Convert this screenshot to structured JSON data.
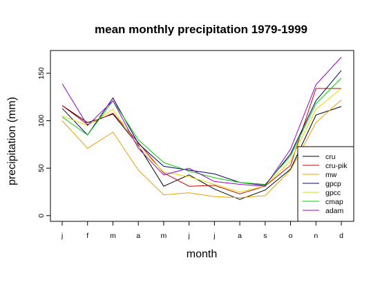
{
  "chart_data": {
    "type": "line",
    "title": "mean monthly precipitation 1979-1999",
    "xlabel": "month",
    "ylabel": "precipitation (mm)",
    "categories": [
      "j",
      "f",
      "m",
      "a",
      "m",
      "j",
      "j",
      "a",
      "s",
      "o",
      "n",
      "d"
    ],
    "yticks": [
      0,
      50,
      100,
      150
    ],
    "ylim": [
      -6,
      174
    ],
    "grid": false,
    "legend_position": "bottom-right",
    "series": [
      {
        "name": "cru",
        "color": "#000000",
        "values": [
          116,
          98,
          107,
          74,
          31,
          43,
          28,
          17,
          27,
          49,
          106,
          115
        ]
      },
      {
        "name": "cru-pik",
        "color": "#cc0000",
        "values": [
          116,
          96,
          108,
          77,
          45,
          31,
          32,
          23,
          31,
          53,
          134,
          134
        ]
      },
      {
        "name": "mw",
        "color": "#e8a000",
        "values": [
          100,
          71,
          88,
          48,
          22,
          24,
          20,
          19,
          21,
          48,
          98,
          122
        ]
      },
      {
        "name": "gpcp",
        "color": "#000066",
        "values": [
          113,
          85,
          124,
          76,
          52,
          48,
          44,
          35,
          32,
          65,
          121,
          153
        ]
      },
      {
        "name": "gpcc",
        "color": "#dddd00",
        "values": [
          105,
          95,
          112,
          73,
          46,
          41,
          33,
          25,
          31,
          58,
          112,
          134
        ]
      },
      {
        "name": "cmap",
        "color": "#00cc00",
        "values": [
          104,
          85,
          121,
          80,
          56,
          47,
          40,
          35,
          33,
          63,
          118,
          145
        ]
      },
      {
        "name": "adam",
        "color": "#9900cc",
        "values": [
          139,
          95,
          121,
          71,
          43,
          50,
          36,
          33,
          31,
          70,
          138,
          167
        ]
      }
    ]
  }
}
